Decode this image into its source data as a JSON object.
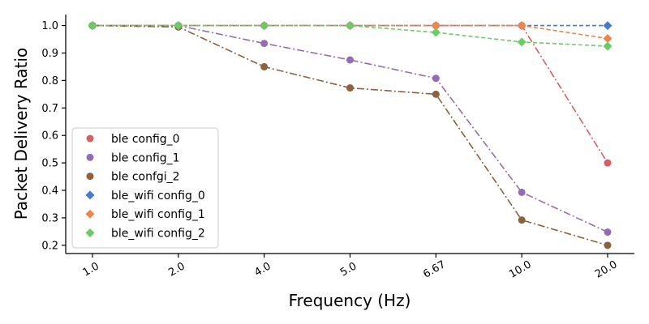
{
  "chart_data": {
    "type": "line",
    "title": "",
    "xlabel": "Frequency (Hz)",
    "ylabel": "Packet Delivery Ratio",
    "categories": [
      "1.0",
      "2.0",
      "4.0",
      "5.0",
      "6.67",
      "10.0",
      "20.0"
    ],
    "ylim": [
      0.17,
      1.04
    ],
    "yticks": [
      "0.2",
      "0.3",
      "0.4",
      "0.5",
      "0.6",
      "0.7",
      "0.8",
      "0.9",
      "1.0"
    ],
    "grid": false,
    "legend_position": "lower-left",
    "series": [
      {
        "name": "ble config_0",
        "values": [
          1.0,
          1.0,
          1.0,
          1.0,
          1.0,
          1.0,
          0.5
        ],
        "color": "#d65f5f",
        "marker": "circle",
        "linestyle": "dashdot"
      },
      {
        "name": "ble config_1",
        "values": [
          1.0,
          1.0,
          0.935,
          0.875,
          0.808,
          0.393,
          0.248
        ],
        "color": "#956cb4",
        "marker": "circle",
        "linestyle": "dashdot"
      },
      {
        "name": "ble confgi_2",
        "values": [
          1.0,
          0.995,
          0.85,
          0.773,
          0.75,
          0.292,
          0.2
        ],
        "color": "#8c613c",
        "marker": "circle",
        "linestyle": "dashdot"
      },
      {
        "name": "ble_wifi config_0",
        "values": [
          1.0,
          1.0,
          1.0,
          1.0,
          1.0,
          1.0,
          1.0
        ],
        "color": "#4878d0",
        "marker": "diamond",
        "linestyle": "dashed"
      },
      {
        "name": "ble_wifi config_1",
        "values": [
          1.0,
          1.0,
          1.0,
          1.0,
          1.0,
          1.0,
          0.953
        ],
        "color": "#ee854a",
        "marker": "diamond",
        "linestyle": "dashed"
      },
      {
        "name": "ble_wifi config_2",
        "values": [
          1.0,
          1.0,
          1.0,
          1.0,
          0.975,
          0.94,
          0.925
        ],
        "color": "#6acc64",
        "marker": "diamond",
        "linestyle": "dashed"
      }
    ]
  }
}
